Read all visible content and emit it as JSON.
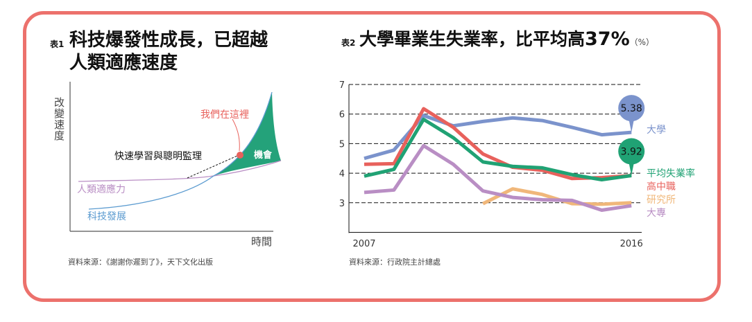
{
  "left": {
    "table_label": "表1",
    "title_line1": "科技爆發性成長，已超越",
    "title_line2": "人類適應速度",
    "y_axis_label": "改變速度",
    "x_axis_label": "時間",
    "annotation_here": "我們在這裡",
    "annotation_learning": "快速學習與聰明監理",
    "annotation_opportunity": "機會",
    "curve_human": "人類適應力",
    "curve_tech": "科技發展",
    "source": "資料來源：《謝謝你遲到了》，天下文化出版",
    "colors": {
      "human": "#b98ec4",
      "tech": "#5b9bd0",
      "opportunity": "#24a27a",
      "here": "#e8615c"
    }
  },
  "right": {
    "table_label": "表2",
    "title": "大學畢業生失業率，比平均高",
    "title_highlight": "37%",
    "unit": "（%）",
    "source": "資料來源：行政院主計總處",
    "callouts": [
      {
        "series": "大學",
        "value": "5.38",
        "color": "#7b93cc"
      },
      {
        "series": "平均失業率",
        "value": "3.92",
        "color": "#20a274"
      }
    ]
  },
  "chart_data": {
    "type": "line",
    "x": [
      2007,
      2008,
      2009,
      2010,
      2011,
      2012,
      2013,
      2014,
      2015,
      2016
    ],
    "x_tick_labels": [
      "2007",
      "2016"
    ],
    "y_ticks": [
      "7",
      "6",
      "5",
      "4",
      "3"
    ],
    "ylim": [
      2,
      7
    ],
    "grid": "dashed horizontal",
    "legend": "right, end-of-line labels",
    "series": [
      {
        "name": "大學",
        "color": "#7b93cc",
        "values": [
          4.5,
          4.78,
          5.95,
          5.6,
          5.75,
          5.87,
          5.78,
          5.55,
          5.3,
          5.38
        ]
      },
      {
        "name": "高中職",
        "color": "#e8615c",
        "values": [
          4.3,
          4.32,
          6.18,
          5.55,
          4.65,
          4.2,
          4.1,
          3.82,
          3.85,
          3.92
        ]
      },
      {
        "name": "平均失業率",
        "color": "#20a274",
        "values": [
          3.9,
          4.13,
          5.82,
          5.2,
          4.38,
          4.23,
          4.18,
          3.95,
          3.78,
          3.92
        ]
      },
      {
        "name": "研究所",
        "color": "#f0b77a",
        "values": [
          null,
          null,
          null,
          null,
          2.97,
          3.47,
          3.28,
          2.97,
          2.95,
          3.0
        ]
      },
      {
        "name": "大專",
        "color": "#b98ec4",
        "values": [
          3.35,
          3.43,
          4.93,
          4.3,
          3.4,
          3.18,
          3.1,
          3.08,
          2.75,
          2.9
        ]
      }
    ]
  }
}
